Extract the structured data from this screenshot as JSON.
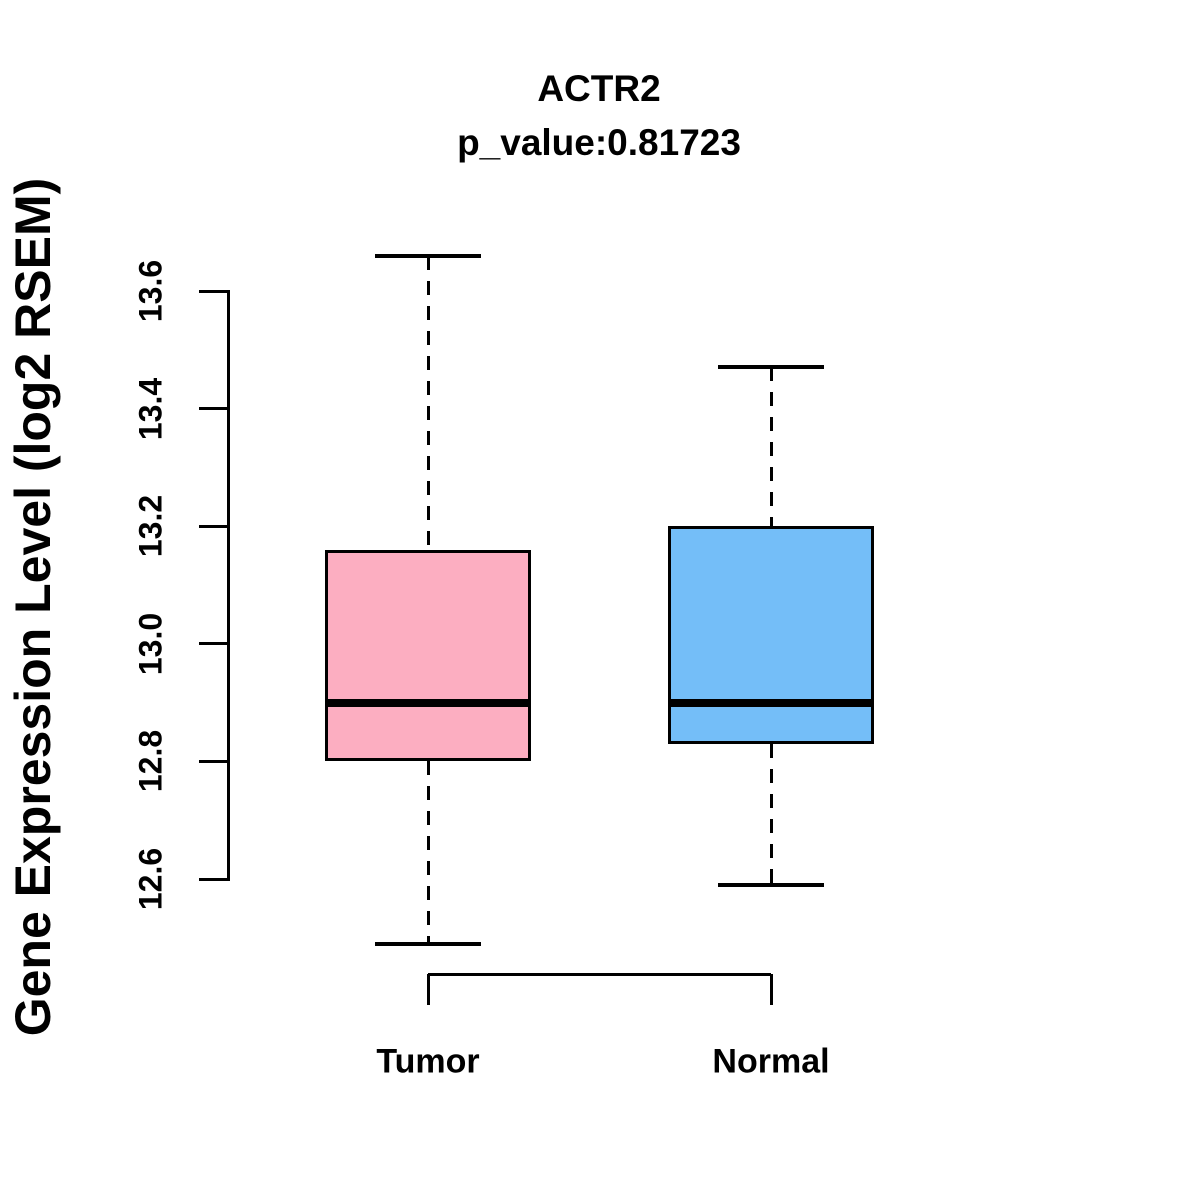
{
  "title": "ACTR2",
  "subtitle": "p_value:0.81723",
  "y_axis": {
    "label": "Gene Expression Level (log2 RSEM)",
    "ticks": [
      "12.6",
      "12.8",
      "13.0",
      "13.2",
      "13.4",
      "13.6"
    ]
  },
  "x_axis": {
    "categories": [
      "Tumor",
      "Normal"
    ]
  },
  "colors": {
    "tumor_fill": "#FCAEC1",
    "normal_fill": "#74BEF8",
    "stroke": "#000000",
    "background": "#FFFFFF"
  },
  "chart_data": {
    "type": "box",
    "title": "ACTR2",
    "subtitle": "p_value:0.81723",
    "xlabel": "",
    "ylabel": "Gene Expression Level (log2 RSEM)",
    "ylim": [
      12.6,
      13.6
    ],
    "ytick_step": 0.2,
    "grid": false,
    "legend": "none",
    "categories": [
      "Tumor",
      "Normal"
    ],
    "series": [
      {
        "name": "Tumor",
        "lower_whisker": 12.49,
        "q1": 12.8,
        "median": 12.9,
        "q3": 13.16,
        "upper_whisker": 13.66,
        "fill": "#FCAEC1"
      },
      {
        "name": "Normal",
        "lower_whisker": 12.59,
        "q1": 12.83,
        "median": 12.9,
        "q3": 13.2,
        "upper_whisker": 13.47,
        "fill": "#74BEF8"
      }
    ]
  }
}
